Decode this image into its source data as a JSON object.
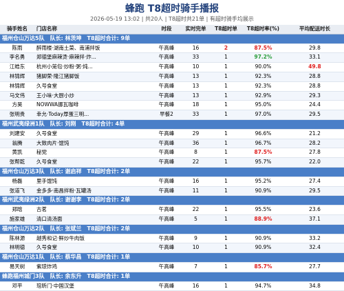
{
  "header": {
    "title": "蜂跑 T8超时骑手播报",
    "subtitle": "2026-05-19 13:02 | 共20人 | T8超时共21单 | 有超时骑手均展示"
  },
  "table": {
    "columns": [
      "骑手姓名",
      "门店名称",
      "时段",
      "实时完单",
      "T8超时单",
      "T8超时率(%)",
      "平均配送时长"
    ],
    "groups": [
      {
        "label": "福州仓山万达5队　队长: 林茨坤　T8超时合计: 9单",
        "rows": [
          {
            "cells": [
              "陈雨",
              "醉雨楼·湖南土菜、南浦拌饭",
              "午高峰",
              "16",
              "2",
              "87.5%",
              "29.8"
            ],
            "colors": {
              "4": "#e02020",
              "5": "#e02020"
            }
          },
          {
            "cells": [
              "李名勇",
              "郑德堡麻辣烫·麻辣拌·炸...",
              "午高峰",
              "33",
              "1",
              "97.2%",
              "33.1"
            ],
            "colors": {
              "5": "#2a9d3a"
            }
          },
          {
            "cells": [
              "江皓东",
              "杭州小笼包·炒粉·粥·炖...",
              "午高峰",
              "10",
              "1",
              "90.0%",
              "49.8"
            ],
            "colors": {
              "6": "#e02020"
            }
          },
          {
            "cells": [
              "林锦辉",
              "猪脚荣·隆江猪脚饭",
              "午高峰",
              "13",
              "1",
              "92.3%",
              "28.8"
            ]
          },
          {
            "cells": [
              "林锦辉",
              "久号食堂",
              "午高峰",
              "13",
              "1",
              "92.3%",
              "28.8"
            ]
          },
          {
            "cells": [
              "马文伟",
              "王小味·大厨小炒",
              "午高峰",
              "13",
              "1",
              "92.9%",
              "29.3"
            ]
          },
          {
            "cells": [
              "方昊",
              "NOWWA挪瓦咖啡",
              "午高峰",
              "18",
              "1",
              "95.0%",
              "24.4"
            ]
          },
          {
            "cells": [
              "张明贵",
              "幸允·Today厚蛋三明...",
              "早餐2",
              "33",
              "1",
              "97.0%",
              "29.5"
            ]
          }
        ]
      },
      {
        "label": "福州武夷绿洲1队　队长: 刘刚　T8超时合计: 4单",
        "rows": [
          {
            "cells": [
              "刘建安",
              "久号食堂",
              "午高峰",
              "29",
              "1",
              "96.6%",
              "21.2"
            ]
          },
          {
            "cells": [
              "翁腾",
              "大致肉片·馄饨",
              "午高峰",
              "36",
              "1",
              "96.7%",
              "28.2"
            ]
          },
          {
            "cells": [
              "黄凯",
              "秘党",
              "午高峰",
              "8",
              "1",
              "87.5%",
              "27.8"
            ],
            "colors": {
              "5": "#e02020"
            }
          },
          {
            "cells": [
              "张帮乾",
              "久号食堂",
              "午高峰",
              "22",
              "1",
              "95.7%",
              "22.0"
            ]
          }
        ]
      },
      {
        "label": "福州仓山万达3队　队长: 谢启祥　T8超时合计: 2单",
        "rows": [
          {
            "cells": [
              "杨磊",
              "里手馄饨",
              "午高峰",
              "16",
              "1",
              "95.2%",
              "27.4"
            ]
          },
          {
            "cells": [
              "张道飞",
              "金多多·南昌拌粉·瓦罐汤",
              "午高峰",
              "11",
              "1",
              "90.9%",
              "29.5"
            ]
          }
        ]
      },
      {
        "label": "福州武夷绿洲2队　队长: 谢谢李　T8超时合计: 2单",
        "rows": [
          {
            "cells": [
              "郑晗",
              "古茗",
              "午高峰",
              "22",
              "1",
              "95.5%",
              "23.6"
            ]
          },
          {
            "cells": [
              "施家雄",
              "清口清汤面",
              "午高峰",
              "5",
              "1",
              "88.9%",
              "37.1"
            ],
            "colors": {
              "5": "#e02020"
            }
          }
        ]
      },
      {
        "label": "福州仓山万达2队　队长: 张斌兰　T8超时合计: 2单",
        "rows": [
          {
            "cells": [
              "陈林源",
              "越秀和记·鲜炒牛肉饭",
              "午高峰",
              "9",
              "1",
              "90.9%",
              "33.2"
            ]
          },
          {
            "cells": [
              "林明德",
              "久号食堂",
              "午高峰",
              "10",
              "1",
              "90.9%",
              "32.4"
            ]
          }
        ]
      },
      {
        "label": "福州仓山万达1队　队长: 蔡华昌　T8超时合计: 1单",
        "rows": [
          {
            "cells": [
              "易天树",
              "紫琼炸鸡",
              "午高峰",
              "7",
              "1",
              "85.7%",
              "27.7"
            ],
            "colors": {
              "5": "#e02020"
            }
          }
        ]
      },
      {
        "label": "蜂跑福州城门3队　队长: 余东升　T8超时合计: 1单",
        "rows": [
          {
            "cells": [
              "邓平",
              "琯昕门·中国汉堡",
              "午高峰",
              "16",
              "1",
              "94.7%",
              "34.8"
            ]
          }
        ]
      }
    ]
  }
}
